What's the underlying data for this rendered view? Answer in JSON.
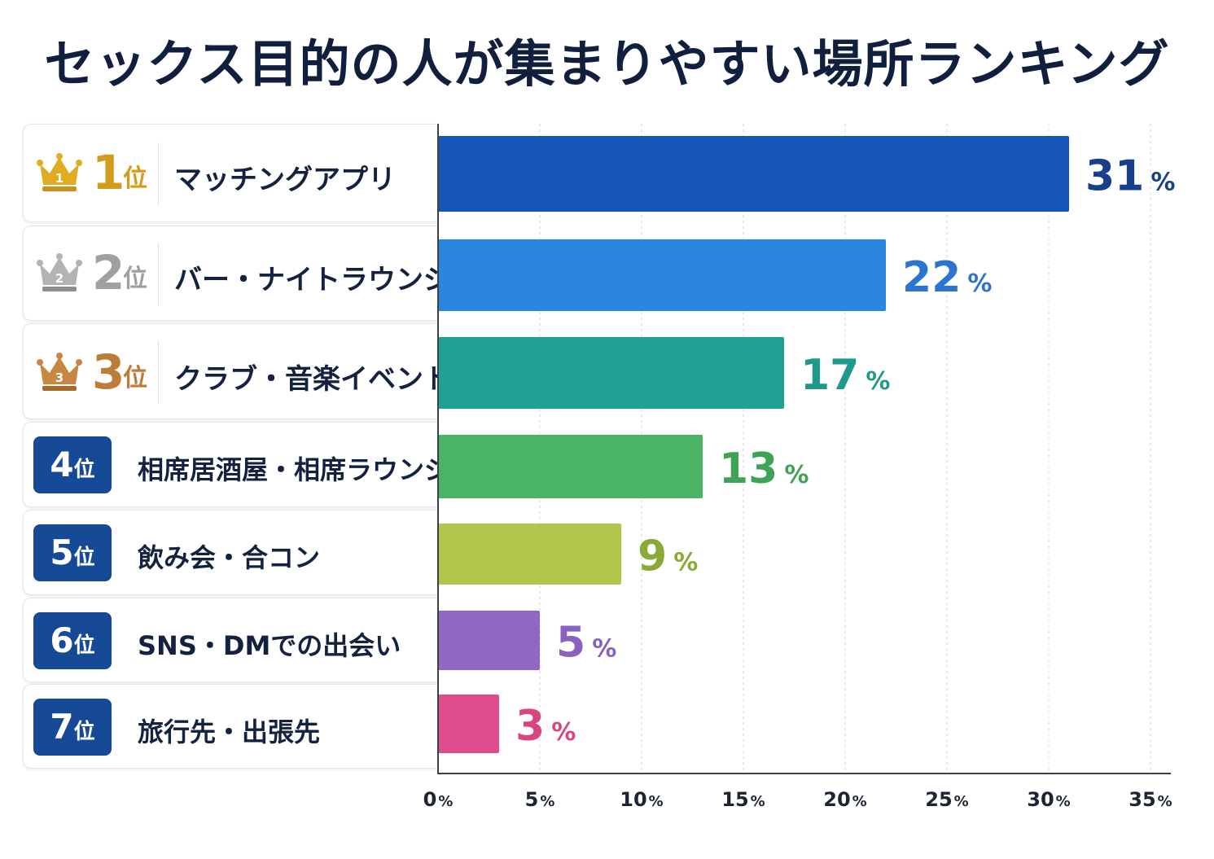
{
  "title": "セックス目的の人が集まりやすい場所ランキング",
  "rank_suffix": "位",
  "colors": {
    "gold": "#d9a21b",
    "silver": "#a3a3a3",
    "bronze": "#c0813b",
    "badge": "#174a96",
    "axis": "#3a3f48",
    "grid": "#dfe3e8"
  },
  "chart_data": {
    "type": "bar",
    "orientation": "horizontal",
    "categories": [
      "マッチングアプリ",
      "バー・ナイトラウンジ",
      "クラブ・音楽イベント",
      "相席居酒屋・相席ラウンジ",
      "飲み会・合コン",
      "SNS・DMでの出会い",
      "旅行先・出張先"
    ],
    "ranks": [
      "1",
      "2",
      "3",
      "4",
      "5",
      "6",
      "7"
    ],
    "values": [
      31,
      22,
      17,
      13,
      9,
      5,
      3
    ],
    "value_labels": [
      "31",
      "22",
      "17",
      "13",
      "9",
      "5",
      "3"
    ],
    "value_unit": "%",
    "bar_colors": [
      "#1656b8",
      "#2b86e0",
      "#21a194",
      "#4bb364",
      "#b0c74b",
      "#8e68c2",
      "#de4c8f"
    ],
    "label_colors": [
      "#173f8c",
      "#2b74cf",
      "#1d9a8c",
      "#3ea356",
      "#8aaa38",
      "#8a61be",
      "#d8457f"
    ],
    "xlim": [
      0,
      35
    ],
    "xticks": [
      0,
      5,
      10,
      15,
      20,
      25,
      30,
      35
    ],
    "xtick_labels": [
      "0",
      "5",
      "10",
      "15",
      "20",
      "25",
      "30",
      "35"
    ],
    "xtick_unit": "%",
    "grid": true
  }
}
